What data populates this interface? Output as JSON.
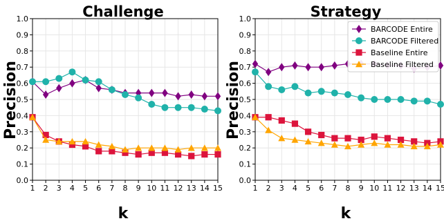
{
  "colors": {
    "barcode_entire": "#800080",
    "barcode_filtered": "#20b2aa",
    "baseline_entire": "#dc143c",
    "baseline_filtered": "#ffa500",
    "grid": "#e6e6e6"
  },
  "legend": {
    "placement": "top-right",
    "entries": [
      "BARCODE Entire",
      "BARCODE Filtered",
      "Baseline Entire",
      "Baseline Filtered"
    ]
  },
  "chart_data": [
    {
      "type": "line",
      "title": "Challenge",
      "xlabel": "k",
      "ylabel": "Precision",
      "xlim": [
        1,
        15
      ],
      "ylim": [
        0.0,
        1.0
      ],
      "grid": true,
      "x": [
        1,
        2,
        3,
        4,
        5,
        6,
        7,
        8,
        9,
        10,
        11,
        12,
        13,
        14,
        15
      ],
      "x_ticks": [
        "1",
        "2",
        "3",
        "4",
        "5",
        "6",
        "7",
        "8",
        "9",
        "10",
        "11",
        "12",
        "13",
        "14",
        "15"
      ],
      "y_ticks": [
        "0.0",
        "0.1",
        "0.2",
        "0.3",
        "0.4",
        "0.5",
        "0.6",
        "0.7",
        "0.8",
        "0.9",
        "1.0"
      ],
      "series": [
        {
          "name": "BARCODE Entire",
          "marker": "diamond",
          "values": [
            0.61,
            0.53,
            0.57,
            0.6,
            0.62,
            0.57,
            0.56,
            0.54,
            0.54,
            0.54,
            0.54,
            0.52,
            0.53,
            0.52,
            0.52
          ]
        },
        {
          "name": "BARCODE Filtered",
          "marker": "circle",
          "values": [
            0.61,
            0.61,
            0.63,
            0.67,
            0.62,
            0.61,
            0.56,
            0.53,
            0.51,
            0.47,
            0.45,
            0.45,
            0.45,
            0.44,
            0.43
          ]
        },
        {
          "name": "Baseline Entire",
          "marker": "square",
          "values": [
            0.39,
            0.28,
            0.24,
            0.22,
            0.21,
            0.18,
            0.18,
            0.17,
            0.16,
            0.17,
            0.17,
            0.16,
            0.15,
            0.16,
            0.16
          ]
        },
        {
          "name": "Baseline Filtered",
          "marker": "triangle",
          "values": [
            0.39,
            0.25,
            0.24,
            0.24,
            0.24,
            0.22,
            0.21,
            0.19,
            0.2,
            0.2,
            0.2,
            0.19,
            0.2,
            0.2,
            0.2
          ]
        }
      ],
      "legend": false
    },
    {
      "type": "line",
      "title": "Strategy",
      "xlabel": "k",
      "ylabel": "Precision",
      "xlim": [
        1,
        15
      ],
      "ylim": [
        0.0,
        1.0
      ],
      "grid": true,
      "x": [
        1,
        2,
        3,
        4,
        5,
        6,
        7,
        8,
        9,
        10,
        11,
        12,
        13,
        14,
        15
      ],
      "x_ticks": [
        "1",
        "2",
        "3",
        "4",
        "5",
        "6",
        "7",
        "8",
        "9",
        "10",
        "11",
        "12",
        "13",
        "14",
        "15"
      ],
      "y_ticks": [
        "0.0",
        "0.1",
        "0.2",
        "0.3",
        "0.4",
        "0.5",
        "0.6",
        "0.7",
        "0.8",
        "0.9",
        "1.0"
      ],
      "series": [
        {
          "name": "BARCODE Entire",
          "marker": "diamond",
          "values": [
            0.72,
            0.67,
            0.7,
            0.71,
            0.7,
            0.7,
            0.71,
            0.72,
            0.72,
            0.72,
            0.71,
            0.71,
            0.69,
            0.7,
            0.71
          ]
        },
        {
          "name": "BARCODE Filtered",
          "marker": "circle",
          "values": [
            0.67,
            0.58,
            0.56,
            0.58,
            0.54,
            0.55,
            0.54,
            0.53,
            0.51,
            0.5,
            0.5,
            0.5,
            0.49,
            0.49,
            0.47
          ]
        },
        {
          "name": "Baseline Entire",
          "marker": "square",
          "values": [
            0.39,
            0.39,
            0.37,
            0.35,
            0.3,
            0.28,
            0.26,
            0.26,
            0.25,
            0.27,
            0.26,
            0.25,
            0.24,
            0.23,
            0.24
          ]
        },
        {
          "name": "Baseline Filtered",
          "marker": "triangle",
          "values": [
            0.39,
            0.31,
            0.26,
            0.25,
            0.24,
            0.23,
            0.22,
            0.21,
            0.22,
            0.23,
            0.22,
            0.22,
            0.21,
            0.21,
            0.22
          ]
        }
      ],
      "legend": true
    }
  ]
}
